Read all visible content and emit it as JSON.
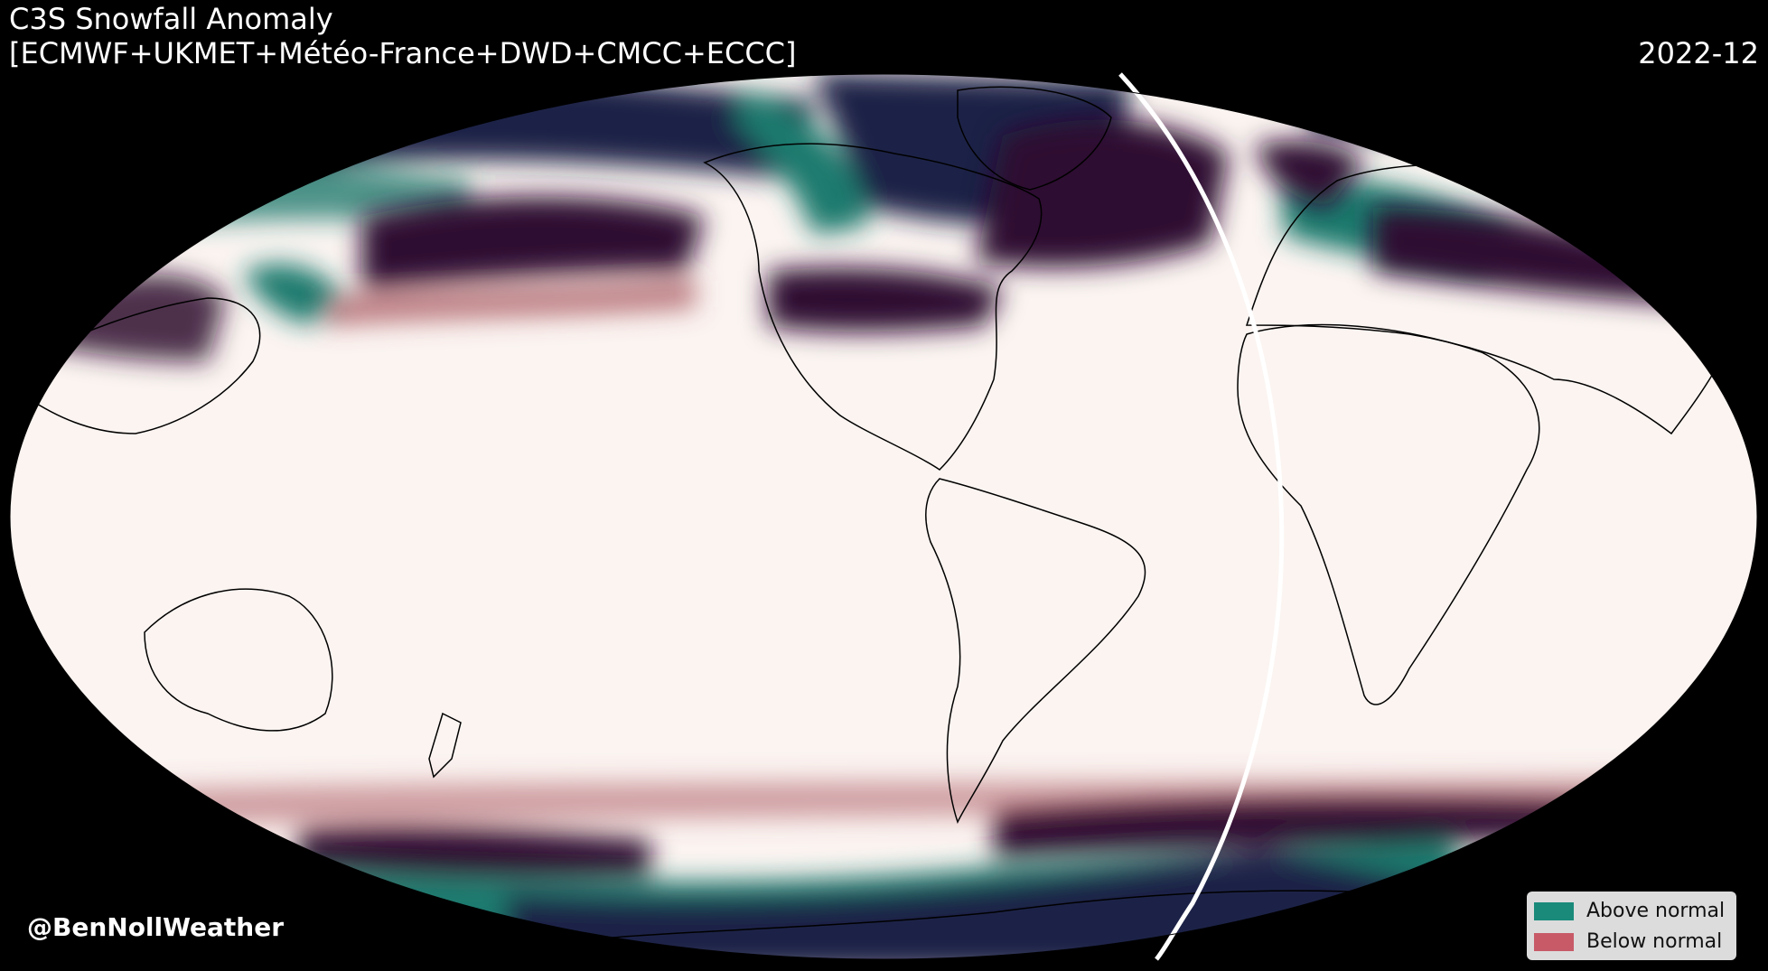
{
  "header": {
    "title": "C3S Snowfall Anomaly",
    "subtitle": "[ECMWF+UKMET+Météo-France+DWD+CMCC+ECCC]",
    "date": "2022-12"
  },
  "credit": "@BenNollWeather",
  "legend": {
    "items": [
      {
        "label": "Above normal",
        "color": "#1a8a7a"
      },
      {
        "label": "Below normal",
        "color": "#c85a68"
      }
    ]
  },
  "map": {
    "projection": "Robinson",
    "background_color": "#fbf4f1",
    "colors": {
      "strong_above": "#1b2146",
      "above": "#1f7a6e",
      "strong_below": "#2e0c30",
      "below": "#a8545c",
      "outline": "#000000"
    }
  }
}
